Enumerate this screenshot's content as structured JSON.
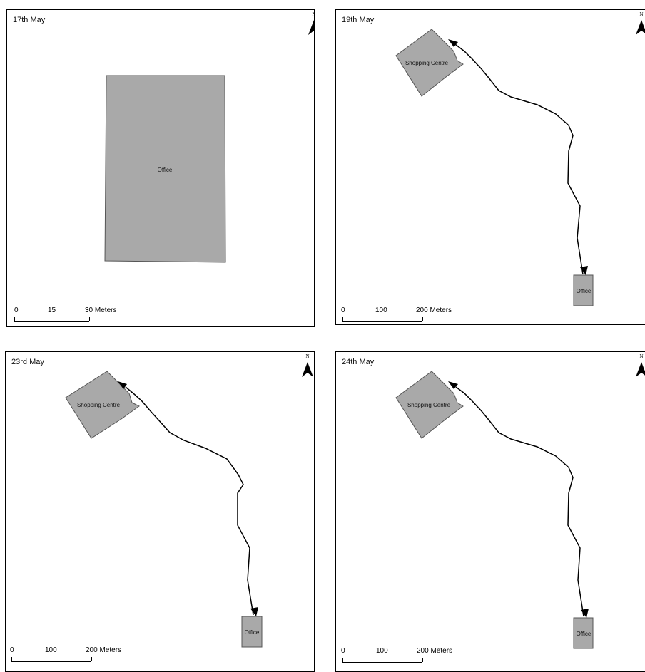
{
  "north_label": "N",
  "colors": {
    "building_fill": "#a9a9a9",
    "building_stroke": "#555555",
    "route": "#000000",
    "frame": "#000000"
  },
  "icons": {
    "north_arrow": "north-arrow-icon"
  },
  "panels": [
    {
      "date": "17th May",
      "buildings": [
        {
          "label": "Office"
        }
      ],
      "scale": {
        "ticks": [
          "0",
          "15"
        ],
        "end": "30",
        "unit": "Meters"
      }
    },
    {
      "date": "19th May",
      "buildings": [
        {
          "label": "Shopping Centre"
        },
        {
          "label": "Office"
        }
      ],
      "scale": {
        "ticks": [
          "0",
          "100"
        ],
        "end": "200",
        "unit": "Meters"
      }
    },
    {
      "date": "23rd May",
      "buildings": [
        {
          "label": "Shopping Centre"
        },
        {
          "label": "Office"
        }
      ],
      "scale": {
        "ticks": [
          "0",
          "100"
        ],
        "end": "200",
        "unit": "Meters"
      }
    },
    {
      "date": "24th May",
      "buildings": [
        {
          "label": "Shopping Centre"
        },
        {
          "label": "Office"
        }
      ],
      "scale": {
        "ticks": [
          "0",
          "100"
        ],
        "end": "200",
        "unit": "Meters"
      }
    }
  ]
}
